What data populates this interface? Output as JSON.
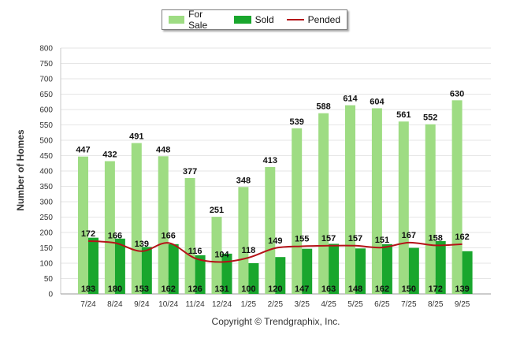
{
  "chart_data": {
    "type": "bar",
    "title": "",
    "xlabel": "",
    "ylabel": "Number of Homes",
    "ylim": [
      0,
      800
    ],
    "yticks": [
      0,
      50,
      100,
      150,
      200,
      250,
      300,
      350,
      400,
      450,
      500,
      550,
      600,
      650,
      700,
      750,
      800
    ],
    "grid": true,
    "legend_position": "top-center",
    "categories": [
      "7/24",
      "8/24",
      "9/24",
      "10/24",
      "11/24",
      "12/24",
      "1/25",
      "2/25",
      "3/25",
      "4/25",
      "5/25",
      "6/25",
      "7/25",
      "8/25",
      "9/25"
    ],
    "series": [
      {
        "name": "For Sale",
        "kind": "bar",
        "color": "#9edc83",
        "values": [
          447,
          432,
          491,
          448,
          377,
          251,
          348,
          413,
          539,
          588,
          614,
          604,
          561,
          552,
          630
        ]
      },
      {
        "name": "Sold",
        "kind": "bar",
        "color": "#19a62d",
        "values": [
          183,
          180,
          153,
          162,
          126,
          131,
          100,
          120,
          147,
          163,
          148,
          162,
          150,
          172,
          139
        ]
      },
      {
        "name": "Pended",
        "kind": "line",
        "color": "#b51218",
        "values": [
          172,
          166,
          139,
          166,
          116,
          104,
          118,
          149,
          155,
          157,
          157,
          151,
          167,
          158,
          162
        ]
      }
    ],
    "copyright": "Copyright © Trendgraphix, Inc."
  }
}
